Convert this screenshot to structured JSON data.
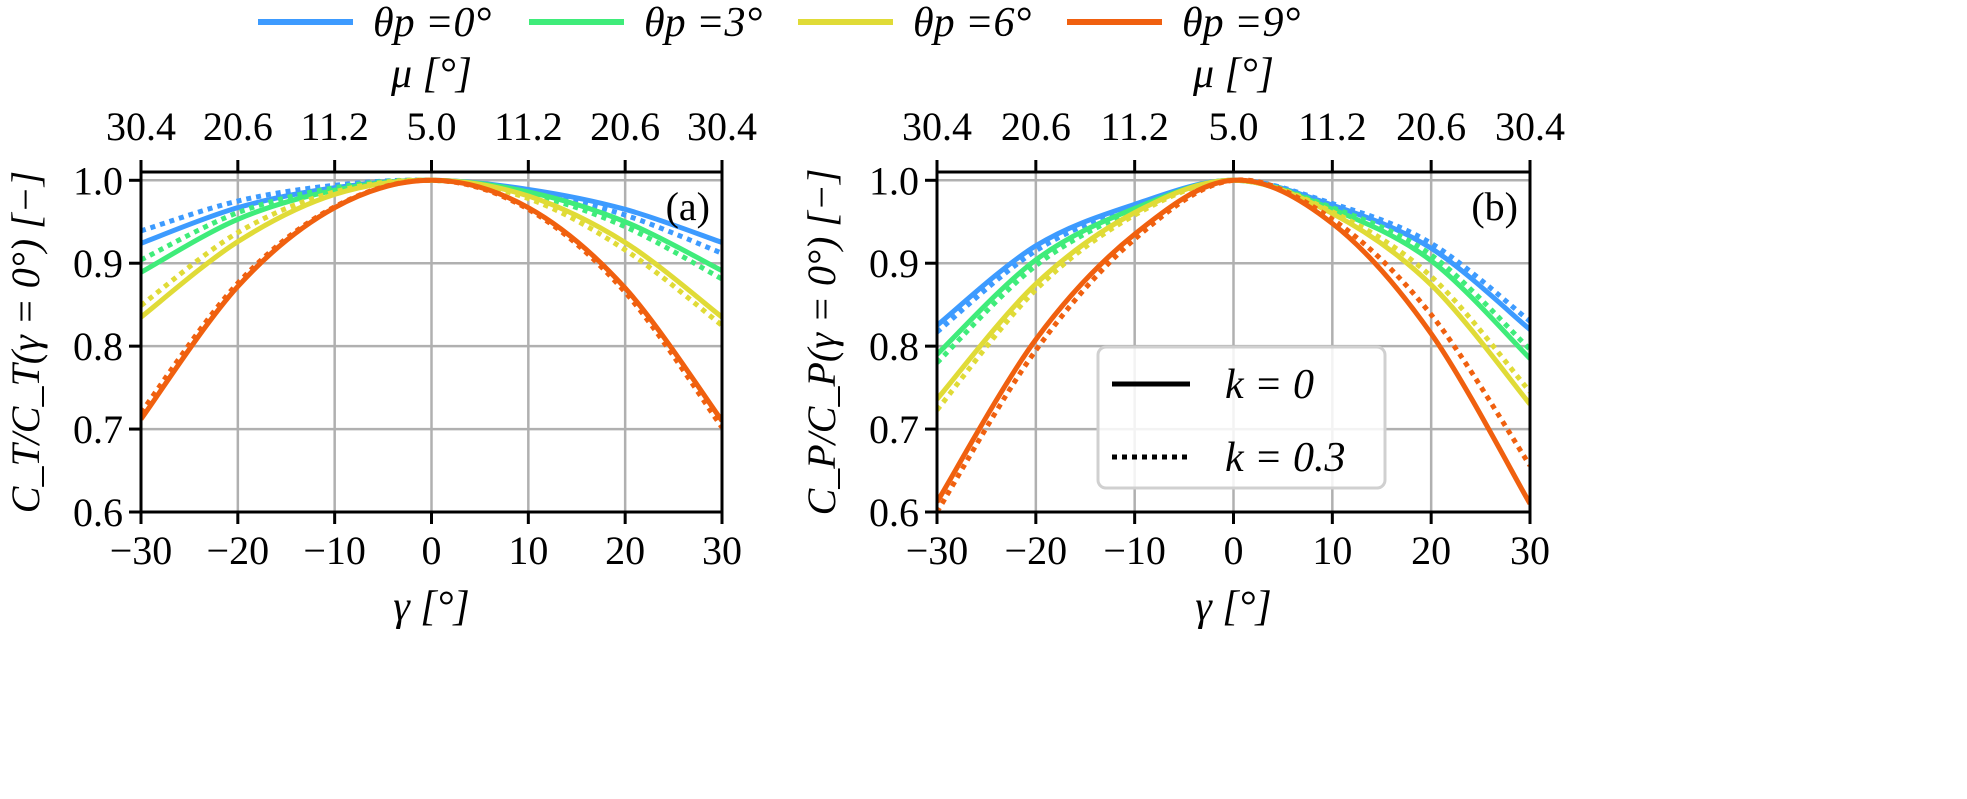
{
  "chart_data": {
    "type": "line",
    "legend_top": {
      "placement": "top-center",
      "entries": [
        {
          "label": "θp =0°",
          "color": "#3d9bff"
        },
        {
          "label": "θp =3°",
          "color": "#3fec7a"
        },
        {
          "label": "θp =6°",
          "color": "#e0db37"
        },
        {
          "label": "θp =9°",
          "color": "#f0600f"
        }
      ]
    },
    "legend_style": {
      "placement": "lower-right of panel (b)",
      "entries": [
        {
          "label": "k = 0",
          "style": "solid"
        },
        {
          "label": "k = 0.3",
          "style": "dotted"
        }
      ]
    },
    "x": [
      -30,
      -20,
      -10,
      0,
      10,
      20,
      30
    ],
    "xlabel": "γ [°]",
    "xlim": [
      -30,
      30
    ],
    "xticks": [
      "−30",
      "−20",
      "−10",
      "0",
      "10",
      "20",
      "30"
    ],
    "top_xlabel": "μ [°]",
    "top_xticks": [
      "30.4",
      "20.6",
      "11.2",
      "5.0",
      "11.2",
      "20.6",
      "30.4"
    ],
    "ylim": [
      0.6,
      1.01
    ],
    "yticks": [
      "0.6",
      "0.7",
      "0.8",
      "0.9",
      "1.0"
    ],
    "grid": true,
    "panels": [
      {
        "tag": "(a)",
        "ylabel": "C_T/C_T(γ = 0°) [−]",
        "series": [
          {
            "name": "θp=0°, k=0",
            "color": "#3d9bff",
            "style": "solid",
            "values": [
              0.924,
              0.967,
              0.991,
              1.0,
              0.989,
              0.965,
              0.925
            ]
          },
          {
            "name": "θp=0°, k=0.3",
            "color": "#3d9bff",
            "style": "dotted",
            "values": [
              0.939,
              0.975,
              0.994,
              1.0,
              0.987,
              0.958,
              0.912
            ]
          },
          {
            "name": "θp=3°, k=0",
            "color": "#3fec7a",
            "style": "solid",
            "values": [
              0.889,
              0.953,
              0.988,
              1.0,
              0.986,
              0.95,
              0.891
            ]
          },
          {
            "name": "θp=3°, k=0.3",
            "color": "#3fec7a",
            "style": "dotted",
            "values": [
              0.904,
              0.961,
              0.991,
              1.0,
              0.984,
              0.944,
              0.881
            ]
          },
          {
            "name": "θp=6°, k=0",
            "color": "#e0db37",
            "style": "solid",
            "values": [
              0.835,
              0.926,
              0.983,
              1.0,
              0.981,
              0.925,
              0.835
            ]
          },
          {
            "name": "θp=6°, k=0.3",
            "color": "#e0db37",
            "style": "dotted",
            "values": [
              0.849,
              0.937,
              0.986,
              1.0,
              0.978,
              0.916,
              0.825
            ]
          },
          {
            "name": "θp=9°, k=0",
            "color": "#f0600f",
            "style": "solid",
            "values": [
              0.712,
              0.872,
              0.967,
              1.0,
              0.967,
              0.87,
              0.71
            ]
          },
          {
            "name": "θp=9°, k=0.3",
            "color": "#f0600f",
            "style": "dotted",
            "values": [
              0.72,
              0.876,
              0.968,
              1.0,
              0.965,
              0.865,
              0.702
            ]
          }
        ]
      },
      {
        "tag": "(b)",
        "ylabel": "C_P/C_P(γ = 0°) [−]",
        "series": [
          {
            "name": "θp=0°, k=0",
            "color": "#3d9bff",
            "style": "solid",
            "values": [
              0.825,
              0.921,
              0.971,
              1.0,
              0.97,
              0.918,
              0.82
            ]
          },
          {
            "name": "θp=0°, k=0.3",
            "color": "#3d9bff",
            "style": "dotted",
            "values": [
              0.817,
              0.915,
              0.969,
              1.0,
              0.972,
              0.924,
              0.83
            ]
          },
          {
            "name": "θp=3°, k=0",
            "color": "#3fec7a",
            "style": "solid",
            "values": [
              0.79,
              0.904,
              0.966,
              1.0,
              0.965,
              0.903,
              0.785
            ]
          },
          {
            "name": "θp=3°, k=0.3",
            "color": "#3fec7a",
            "style": "dotted",
            "values": [
              0.78,
              0.897,
              0.964,
              1.0,
              0.967,
              0.91,
              0.796
            ]
          },
          {
            "name": "θp=6°, k=0",
            "color": "#e0db37",
            "style": "solid",
            "values": [
              0.736,
              0.875,
              0.961,
              1.0,
              0.96,
              0.874,
              0.73
            ]
          },
          {
            "name": "θp=6°, k=0.3",
            "color": "#e0db37",
            "style": "dotted",
            "values": [
              0.723,
              0.868,
              0.958,
              1.0,
              0.962,
              0.884,
              0.745
            ]
          },
          {
            "name": "θp=9°, k=0",
            "color": "#f0600f",
            "style": "solid",
            "values": [
              0.612,
              0.808,
              0.935,
              1.0,
              0.948,
              0.815,
              0.61
            ]
          },
          {
            "name": "θp=9°, k=0.3",
            "color": "#f0600f",
            "style": "dotted",
            "values": [
              0.6,
              0.795,
              0.929,
              1.0,
              0.953,
              0.838,
              0.656
            ]
          }
        ]
      }
    ]
  }
}
